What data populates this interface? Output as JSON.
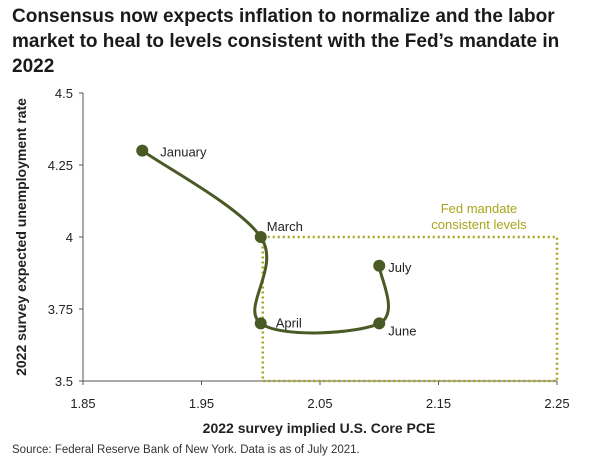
{
  "chart_data": {
    "type": "line",
    "title": "Consensus now expects inflation to normalize and the labor market to heal to levels consistent with the Fed’s mandate in 2022",
    "xlabel": "2022 survey implied U.S. Core PCE",
    "ylabel": "2022 survey expected unemployment rate",
    "xlim": [
      1.85,
      2.25
    ],
    "ylim": [
      3.5,
      4.5
    ],
    "x_ticks": [
      "1.85",
      "1.95",
      "2.05",
      "2.15",
      "2.25"
    ],
    "y_ticks": [
      "3.5",
      "3.75",
      "4",
      "4.25",
      "4.5"
    ],
    "series": [
      {
        "points": [
          {
            "label": "January",
            "x": 1.9,
            "y": 4.3
          },
          {
            "label": "March",
            "x": 2.0,
            "y": 4.0
          },
          {
            "label": "April",
            "x": 2.0,
            "y": 3.7
          },
          {
            "label": "June",
            "x": 2.1,
            "y": 3.7
          },
          {
            "label": "July",
            "x": 2.1,
            "y": 3.9
          }
        ]
      }
    ],
    "region": {
      "label_lines": [
        "Fed mandate",
        "consistent levels"
      ],
      "x_range": [
        2.0,
        2.25
      ],
      "y_range": [
        3.5,
        4.0
      ]
    },
    "line_color": "#4a5a24",
    "region_color": "#a7a51b",
    "grid": false
  },
  "source": "Source: Federal Reserve Bank of New York. Data is as of July 2021."
}
